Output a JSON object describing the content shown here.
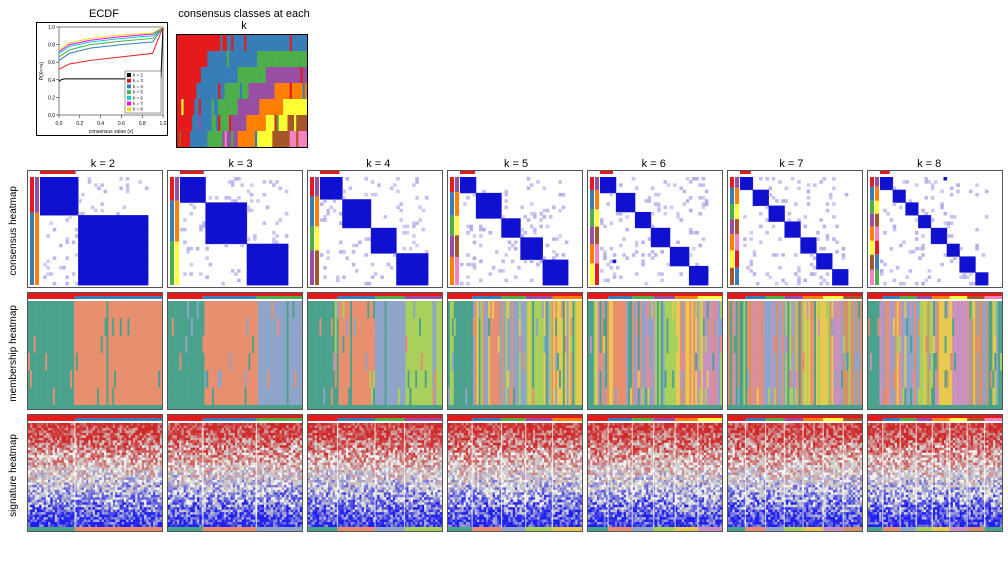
{
  "titles": {
    "ecdf": "ECDF",
    "consensus_classes": "consensus classes at each k",
    "row_consensus": "consensus heatmap",
    "row_membership": "membership heatmap",
    "row_signature": "signature heatmap",
    "ecdf_xlab": "consensus value (x)",
    "ecdf_ylab": "P(X<=x)"
  },
  "k_values": [
    "k = 2",
    "k = 3",
    "k = 4",
    "k = 5",
    "k = 6",
    "k = 7",
    "k = 8"
  ],
  "ecdf": {
    "xlim": [
      0,
      1
    ],
    "ylim": [
      0,
      1
    ],
    "xticks": [
      "0.0",
      "0.2",
      "0.4",
      "0.6",
      "0.8",
      "1.0"
    ],
    "yticks": [
      "0.0",
      "0.2",
      "0.4",
      "0.6",
      "0.8",
      "1.0"
    ],
    "legend_items": [
      {
        "label": "k = 2",
        "color": "#000000"
      },
      {
        "label": "k = 3",
        "color": "#e41a1c"
      },
      {
        "label": "k = 4",
        "color": "#377eb8"
      },
      {
        "label": "k = 5",
        "color": "#4daf4a"
      },
      {
        "label": "k = 6",
        "color": "#00ced1"
      },
      {
        "label": "k = 7",
        "color": "#ff00ff"
      },
      {
        "label": "k = 8",
        "color": "#ffd700"
      }
    ],
    "curves": [
      {
        "color": "#000000",
        "pts": [
          [
            0,
            0.38
          ],
          [
            0.02,
            0.4
          ],
          [
            0.05,
            0.41
          ],
          [
            0.95,
            0.41
          ],
          [
            0.98,
            0.42
          ],
          [
            1,
            1
          ]
        ]
      },
      {
        "color": "#e41a1c",
        "pts": [
          [
            0,
            0.52
          ],
          [
            0.1,
            0.58
          ],
          [
            0.3,
            0.62
          ],
          [
            0.6,
            0.66
          ],
          [
            0.9,
            0.7
          ],
          [
            1,
            1
          ]
        ]
      },
      {
        "color": "#377eb8",
        "pts": [
          [
            0,
            0.62
          ],
          [
            0.1,
            0.7
          ],
          [
            0.3,
            0.76
          ],
          [
            0.6,
            0.8
          ],
          [
            0.9,
            0.83
          ],
          [
            1,
            1
          ]
        ]
      },
      {
        "color": "#4daf4a",
        "pts": [
          [
            0,
            0.66
          ],
          [
            0.1,
            0.74
          ],
          [
            0.3,
            0.8
          ],
          [
            0.6,
            0.84
          ],
          [
            0.9,
            0.87
          ],
          [
            1,
            1
          ]
        ]
      },
      {
        "color": "#00ced1",
        "pts": [
          [
            0,
            0.7
          ],
          [
            0.1,
            0.78
          ],
          [
            0.3,
            0.83
          ],
          [
            0.6,
            0.87
          ],
          [
            0.9,
            0.9
          ],
          [
            1,
            1
          ]
        ]
      },
      {
        "color": "#ff00ff",
        "pts": [
          [
            0,
            0.72
          ],
          [
            0.1,
            0.8
          ],
          [
            0.3,
            0.85
          ],
          [
            0.6,
            0.89
          ],
          [
            0.9,
            0.92
          ],
          [
            1,
            1
          ]
        ]
      },
      {
        "color": "#ffd700",
        "pts": [
          [
            0,
            0.74
          ],
          [
            0.1,
            0.82
          ],
          [
            0.3,
            0.87
          ],
          [
            0.6,
            0.91
          ],
          [
            0.9,
            0.93
          ],
          [
            1,
            1
          ]
        ]
      }
    ]
  },
  "palette": {
    "cluster_colors": [
      "#e41a1c",
      "#377eb8",
      "#4daf4a",
      "#984ea3",
      "#ff7f00",
      "#ffff33",
      "#a65628",
      "#f781bf"
    ],
    "membership_colors": [
      "#4aa28d",
      "#e88f6f",
      "#8ea4c8",
      "#a8d05b",
      "#e8c94f",
      "#c891c0",
      "#d4926a"
    ],
    "consensus_block": "#1010d0",
    "consensus_faint": "#b0a8e8",
    "consensus_bg": "#ffffff",
    "sig_red": "#d01010",
    "sig_blue": "#1818c8",
    "sig_white": "#ffffff"
  },
  "consensus_blocks": {
    "2": [
      0.33,
      0.67
    ],
    "3": [
      0.22,
      0.38,
      0.4
    ],
    "4": [
      0.18,
      0.28,
      0.22,
      0.32
    ],
    "5": [
      0.14,
      0.22,
      0.18,
      0.2,
      0.26
    ],
    "6": [
      0.12,
      0.18,
      0.16,
      0.16,
      0.18,
      0.2
    ],
    "7": [
      0.1,
      0.15,
      0.14,
      0.14,
      0.15,
      0.16,
      0.16
    ],
    "8": [
      0.09,
      0.13,
      0.12,
      0.12,
      0.13,
      0.13,
      0.14,
      0.14
    ]
  },
  "membership_blocks": {
    "2": [
      0.35,
      0.65
    ],
    "3": [
      0.26,
      0.4,
      0.34
    ],
    "4": [
      0.22,
      0.28,
      0.22,
      0.28
    ],
    "5": [
      0.18,
      0.22,
      0.18,
      0.2,
      0.22
    ],
    "6": [
      0.15,
      0.18,
      0.16,
      0.16,
      0.17,
      0.18
    ],
    "7": [
      0.13,
      0.15,
      0.14,
      0.14,
      0.15,
      0.15,
      0.14
    ],
    "8": [
      0.11,
      0.13,
      0.12,
      0.12,
      0.13,
      0.13,
      0.13,
      0.13
    ]
  }
}
